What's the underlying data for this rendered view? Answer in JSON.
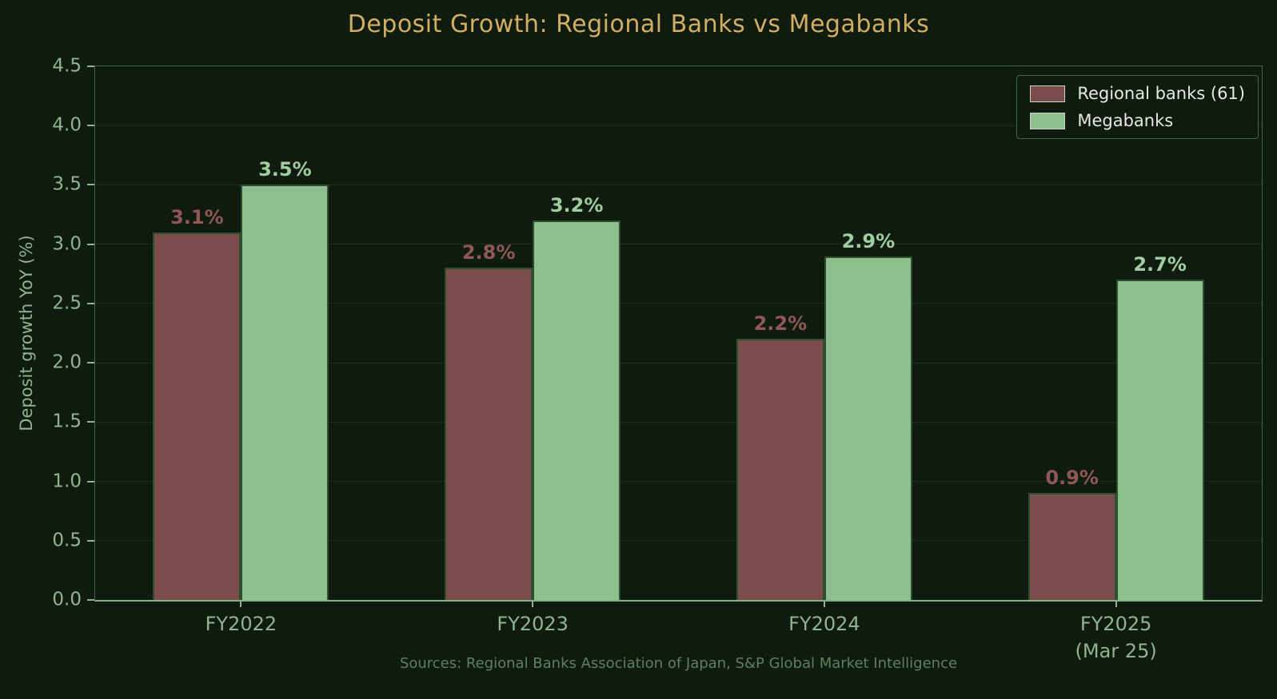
{
  "title": "Deposit Growth: Regional Banks vs Megabanks",
  "footer": "Sources: Regional Banks Association of Japan, S&P Global Market Intelligence",
  "colors": {
    "background": "#101b10",
    "title": "#d2ae62",
    "axis_text": "#8fb48f",
    "grid": "#1e2d1e",
    "spine": "#466546",
    "bottom_spine": "#8ab08a",
    "bar_edge": "#2e4e2e",
    "legend_text": "#e6e8e2",
    "legend_swatch_edge": "#ccd4c8",
    "footer_text": "#5f7f5f",
    "regional_banks": "#7b4c4c",
    "megabanks": "#8dbf8f"
  },
  "legend": {
    "items": [
      "Regional banks (61)",
      "Megabanks"
    ]
  },
  "chart_data": {
    "type": "bar",
    "title": "Deposit Growth: Regional Banks vs Megabanks",
    "xlabel": "",
    "ylabel": "Deposit growth YoY (%)",
    "ylim": [
      0,
      4.5
    ],
    "yticks": [
      0,
      0.5,
      1,
      1.5,
      2,
      2.5,
      3,
      3.5,
      4,
      4.5
    ],
    "grid": "horizontal",
    "legend_position": "upper right",
    "categories": [
      "FY2022",
      "FY2023",
      "FY2024",
      "FY2025\n(Mar 25)"
    ],
    "series": [
      {
        "name": "Regional banks (61)",
        "color": "#7b4c4c",
        "label_color": "#8f5757",
        "values": [
          3.1,
          2.8,
          2.2,
          0.9
        ],
        "labels": [
          "3.1%",
          "2.8%",
          "2.2%",
          "0.9%"
        ]
      },
      {
        "name": "Megabanks",
        "color": "#8dbf8f",
        "label_color": "#9fcd9f",
        "values": [
          3.5,
          3.2,
          2.9,
          2.7
        ],
        "labels": [
          "3.5%",
          "3.2%",
          "2.9%",
          "2.7%"
        ]
      }
    ]
  }
}
